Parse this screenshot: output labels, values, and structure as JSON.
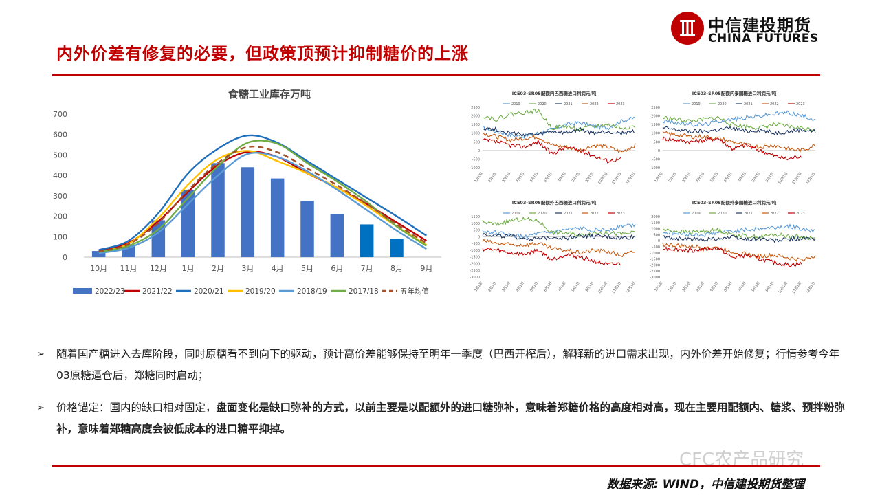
{
  "page_title": "内外价差有修复的必要，但政策顶预计抑制糖价的上涨",
  "logo": {
    "cn": "中信建投期货",
    "en": "CHINA FUTURES"
  },
  "chart_data": [
    {
      "type": "bar+line",
      "title": "食糖工业库存万吨",
      "categories": [
        "10月",
        "11月",
        "12月",
        "1月",
        "2月",
        "3月",
        "4月",
        "5月",
        "6月",
        "7月",
        "8月",
        "9月"
      ],
      "yticks": [
        "0",
        "100",
        "200",
        "300",
        "400",
        "500",
        "600",
        "700"
      ],
      "ylim": [
        0,
        700
      ],
      "series": [
        {
          "name": "2022/23",
          "kind": "bar",
          "color": "#4472c4",
          "values": [
            30,
            60,
            180,
            330,
            460,
            440,
            385,
            275,
            210,
            null,
            null,
            null
          ]
        },
        {
          "name": "",
          "kind": "bar",
          "color": "#0070c0",
          "values": [
            null,
            null,
            null,
            null,
            null,
            null,
            null,
            null,
            null,
            160,
            90,
            null
          ]
        },
        {
          "name": "2021/22",
          "kind": "line",
          "color": "#c00000",
          "values": [
            30,
            70,
            175,
            320,
            450,
            515,
            490,
            410,
            340,
            260,
            170,
            80
          ]
        },
        {
          "name": "2020/21",
          "kind": "line",
          "color": "#1f6fbd",
          "values": [
            35,
            80,
            215,
            410,
            530,
            595,
            560,
            470,
            380,
            290,
            200,
            105
          ]
        },
        {
          "name": "2019/20",
          "kind": "line",
          "color": "#ffc000",
          "values": [
            25,
            65,
            190,
            355,
            480,
            520,
            470,
            410,
            340,
            250,
            150,
            60
          ]
        },
        {
          "name": "2018/19",
          "kind": "line",
          "color": "#5b9bd5",
          "values": [
            20,
            45,
            120,
            260,
            400,
            505,
            490,
            420,
            330,
            230,
            130,
            40
          ]
        },
        {
          "name": "2017/18",
          "kind": "line",
          "color": "#70ad47",
          "values": [
            25,
            55,
            135,
            290,
            445,
            560,
            555,
            460,
            370,
            270,
            150,
            55
          ]
        },
        {
          "name": "五年均值",
          "kind": "dashed",
          "color": "#a0522d",
          "values": [
            27,
            63,
            167,
            327,
            461,
            539,
            513,
            434,
            352,
            260,
            160,
            68
          ]
        }
      ]
    },
    {
      "type": "line",
      "title": "ICE03-SR05配额内巴西糖进口利润元/吨",
      "yticks": [
        "-1000",
        "-500",
        "0",
        "500",
        "1000",
        "1500",
        "2000",
        "2500"
      ],
      "ylim": [
        -1000,
        2500
      ],
      "xticks": [
        "1月1日",
        "2月1日",
        "3月1日",
        "4月1日",
        "5月1日",
        "6月1日",
        "7月1日",
        "8月1日",
        "9月1日",
        "10月1日",
        "11月1日",
        "12月1日"
      ],
      "series": [
        {
          "name": "2019",
          "color": "#5b9bd5",
          "values": [
            1300,
            1100,
            900,
            800,
            1000,
            1200,
            1500,
            1600,
            1400,
            1300,
            1700,
            1900
          ]
        },
        {
          "name": "2020",
          "color": "#70ad47",
          "values": [
            2000,
            1800,
            2100,
            2200,
            2300,
            1300,
            1400,
            1200,
            1400,
            1500,
            1300,
            1400
          ]
        },
        {
          "name": "2021",
          "color": "#1f3864",
          "values": [
            1300,
            1200,
            1000,
            900,
            900,
            1100,
            1000,
            1200,
            1000,
            1100,
            1000,
            1100
          ]
        },
        {
          "name": "2022",
          "color": "#c55a11",
          "values": [
            1000,
            800,
            600,
            700,
            800,
            300,
            200,
            0,
            300,
            200,
            -100,
            300
          ]
        },
        {
          "name": "2023",
          "color": "#c00000",
          "values": [
            600,
            500,
            300,
            200,
            500,
            -200,
            200,
            0,
            -300,
            -600,
            -500,
            null
          ]
        }
      ]
    },
    {
      "type": "line",
      "title": "ICE03-SR05配额内泰国糖进口利润元/吨",
      "yticks": [
        "-1000",
        "-500",
        "0",
        "500",
        "1000",
        "1500",
        "2000",
        "2500"
      ],
      "ylim": [
        -1000,
        2500
      ],
      "xticks": [
        "1月1日",
        "2月1日",
        "3月1日",
        "4月1日",
        "5月1日",
        "6月1日",
        "7月1日",
        "8月1日",
        "9月1日",
        "10月1日",
        "11月1日",
        "12月1日"
      ],
      "series": [
        {
          "name": "2019",
          "color": "#5b9bd5",
          "values": [
            1700,
            1600,
            1500,
            1500,
            1700,
            1800,
            1900,
            2000,
            2100,
            2200,
            2000,
            1800
          ]
        },
        {
          "name": "2020",
          "color": "#70ad47",
          "values": [
            1900,
            1800,
            1700,
            1800,
            1900,
            1500,
            1400,
            1300,
            1500,
            1400,
            1300,
            1200
          ]
        },
        {
          "name": "2021",
          "color": "#1f3864",
          "values": [
            1300,
            1200,
            1100,
            1100,
            1200,
            1300,
            1100,
            1200,
            1000,
            1100,
            1200,
            1100
          ]
        },
        {
          "name": "2022",
          "color": "#c55a11",
          "values": [
            1000,
            900,
            800,
            800,
            700,
            500,
            300,
            200,
            300,
            100,
            0,
            300
          ]
        },
        {
          "name": "2023",
          "color": "#c00000",
          "values": [
            700,
            600,
            500,
            600,
            700,
            100,
            300,
            0,
            -300,
            -500,
            -300,
            null
          ]
        }
      ]
    },
    {
      "type": "line",
      "title": "ICE03-SR05配额外巴西糖进口利润元/吨",
      "yticks": [
        "-3000",
        "-2500",
        "-2000",
        "-1500",
        "-1000",
        "-500",
        "0",
        "500",
        "1000",
        "1500"
      ],
      "ylim": [
        -3000,
        1500
      ],
      "xticks": [
        "1月1日",
        "2月1日",
        "3月1日",
        "4月1日",
        "5月1日",
        "6月1日",
        "7月1日",
        "8月1日",
        "9月1日",
        "10月1日",
        "11月1日",
        "12月1日"
      ],
      "series": [
        {
          "name": "2019",
          "color": "#5b9bd5",
          "values": [
            400,
            300,
            100,
            0,
            200,
            300,
            500,
            600,
            500,
            500,
            800,
            900
          ]
        },
        {
          "name": "2020",
          "color": "#70ad47",
          "values": [
            1100,
            900,
            1200,
            1300,
            1200,
            300,
            300,
            100,
            300,
            300,
            200,
            300
          ]
        },
        {
          "name": "2021",
          "color": "#1f3864",
          "values": [
            200,
            100,
            0,
            -100,
            -200,
            0,
            -100,
            100,
            0,
            0,
            -100,
            0
          ]
        },
        {
          "name": "2022",
          "color": "#c55a11",
          "values": [
            -300,
            -500,
            -600,
            -600,
            -500,
            -900,
            -1000,
            -1200,
            -1000,
            -1100,
            -1400,
            -1100
          ]
        },
        {
          "name": "2023",
          "color": "#c00000",
          "values": [
            -900,
            -1000,
            -1200,
            -1300,
            -1000,
            -1700,
            -1300,
            -1500,
            -1800,
            -2100,
            -2000,
            null
          ]
        }
      ]
    },
    {
      "type": "line",
      "title": "ICE03-SR05配额外泰国糖进口利润元/吨",
      "yticks": [
        "-3000",
        "-2500",
        "-2000",
        "-1500",
        "-1000",
        "-500",
        "0",
        "500",
        "1000",
        "1500",
        "2000"
      ],
      "ylim": [
        -3000,
        2000
      ],
      "xticks": [
        "1月1日",
        "2月1日",
        "3月1日",
        "4月1日",
        "5月1日",
        "6月1日",
        "7月1日",
        "8月1日",
        "9月1日",
        "10月1日",
        "11月1日",
        "12月1日"
      ],
      "series": [
        {
          "name": "2019",
          "color": "#5b9bd5",
          "values": [
            700,
            600,
            500,
            500,
            700,
            800,
            900,
            1000,
            1100,
            1200,
            1000,
            800
          ]
        },
        {
          "name": "2020",
          "color": "#70ad47",
          "values": [
            900,
            800,
            700,
            800,
            900,
            500,
            400,
            300,
            500,
            400,
            300,
            200
          ]
        },
        {
          "name": "2021",
          "color": "#1f3864",
          "values": [
            300,
            200,
            100,
            100,
            200,
            300,
            100,
            200,
            0,
            100,
            200,
            100
          ]
        },
        {
          "name": "2022",
          "color": "#c55a11",
          "values": [
            -300,
            -400,
            -500,
            -500,
            -600,
            -900,
            -1100,
            -1300,
            -1200,
            -1400,
            -1600,
            -1200
          ]
        },
        {
          "name": "2023",
          "color": "#c00000",
          "values": [
            -600,
            -700,
            -800,
            -700,
            -600,
            -1400,
            -1200,
            -1500,
            -1800,
            -2000,
            -1900,
            null
          ]
        }
      ]
    }
  ],
  "bullets": [
    {
      "plain_a": "随着国产糖进入去库阶段，同时原糖看不到向下的驱动，预计高价差能够保持至明年一季度（巴西开榨后），解释新的进口需求出现，内外价差开始修复；行情参考今年03原糖逼仓后，郑糖同时启动；",
      "bold": "",
      "plain_b": ""
    },
    {
      "plain_a": "价格锚定：国内的缺口相对固定，",
      "bold": "盘面变化是缺口弥补的方式，以前主要是以配额外的进口糖弥补，意味着郑糖价格的高度相对高，现在主要用配额内、糖浆、预拌粉弥补，意味着郑糖高度会被低成本的进口糖平抑掉。",
      "plain_b": ""
    }
  ],
  "source": "数据来源: WIND，中信建投期货整理",
  "watermark": "CFC农产品研究"
}
